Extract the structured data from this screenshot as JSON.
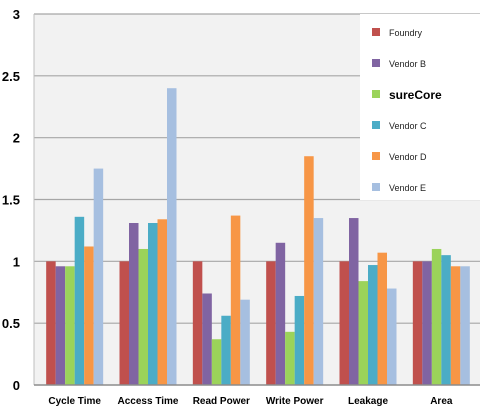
{
  "chart_data": {
    "type": "bar",
    "categories": [
      "Cycle    Time",
      "Access Time",
      "Read  Power",
      "Write Power",
      "Leakage",
      "Area"
    ],
    "ylim": [
      0,
      3
    ],
    "yticks": [
      "0",
      "0.5",
      "1",
      "1.5",
      "2",
      "2.5",
      "3"
    ],
    "grid": true,
    "legend_position": "top-right",
    "series": [
      {
        "name": "Foundry",
        "color": "#c0504d",
        "values": [
          1.0,
          1.0,
          1.0,
          1.0,
          1.0,
          1.0
        ]
      },
      {
        "name": "Vendor B",
        "color": "#8064a2",
        "values": [
          0.96,
          1.31,
          0.74,
          1.15,
          1.35,
          1.0
        ]
      },
      {
        "name": "sureCore",
        "color": "#9bd35a",
        "values": [
          0.96,
          1.1,
          0.37,
          0.43,
          0.84,
          1.1
        ]
      },
      {
        "name": "Vendor C",
        "color": "#4bacc6",
        "values": [
          1.36,
          1.31,
          0.56,
          0.72,
          0.97,
          1.05
        ]
      },
      {
        "name": "Vendor D",
        "color": "#f79646",
        "values": [
          1.12,
          1.34,
          1.37,
          1.85,
          1.07,
          0.96
        ]
      },
      {
        "name": "Vendor E",
        "color": "#a6bfe0",
        "values": [
          1.75,
          2.4,
          0.69,
          1.35,
          0.78,
          0.96
        ]
      }
    ],
    "emphasized_series": "sureCore"
  }
}
